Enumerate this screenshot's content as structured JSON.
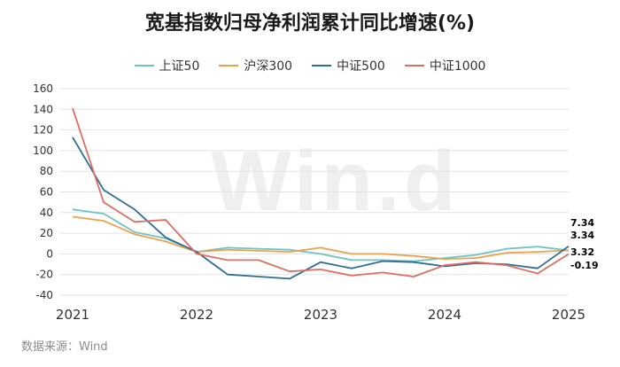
{
  "header": {
    "title": "宽基指数归母净利润累计同比增速(%)"
  },
  "footer": {
    "source": "数据来源：Wind"
  },
  "watermark": "Win.d",
  "chart_data": {
    "type": "line",
    "title": "宽基指数归母净利润累计同比增速(%)",
    "ylim": [
      -40,
      160
    ],
    "yticks": [
      -40,
      -20,
      0,
      20,
      40,
      60,
      80,
      100,
      120,
      140,
      160
    ],
    "xlim": [
      2021,
      2025
    ],
    "xticks": [
      "2021",
      "2022",
      "2023",
      "2024",
      "2025"
    ],
    "grid": true,
    "legend_position": "top",
    "x": [
      2021,
      2021.25,
      2021.5,
      2021.75,
      2022,
      2022.25,
      2022.5,
      2022.75,
      2023,
      2023.25,
      2023.5,
      2023.75,
      2024,
      2024.25,
      2024.5,
      2024.75,
      2025
    ],
    "series": [
      {
        "name": "上证50",
        "color": "#6cc5c5",
        "values": [
          43,
          39,
          21,
          15,
          2,
          6,
          5,
          4,
          0,
          -6,
          -6,
          -7,
          -4,
          -1,
          5,
          7,
          3.34
        ]
      },
      {
        "name": "沪深300",
        "color": "#f0a04a",
        "values": [
          36,
          32,
          19,
          12,
          2,
          4,
          3,
          2,
          6,
          0,
          0,
          -2,
          -5,
          -4,
          1,
          2,
          3.32
        ]
      },
      {
        "name": "中证500",
        "color": "#2f6f97",
        "values": [
          113,
          62,
          43,
          16,
          2,
          -20,
          -22,
          -24,
          -8,
          -14,
          -7,
          -8,
          -12,
          -9,
          -10,
          -14,
          7.34
        ]
      },
      {
        "name": "中证1000",
        "color": "#e06d61",
        "values": [
          141,
          50,
          31,
          33,
          0,
          -6,
          -6,
          -17,
          -15,
          -21,
          -18,
          -22,
          -11,
          -8,
          -11,
          -19,
          -0.19
        ]
      }
    ],
    "end_labels": [
      "7.34",
      "3.34",
      "3.32",
      "-0.19"
    ]
  }
}
